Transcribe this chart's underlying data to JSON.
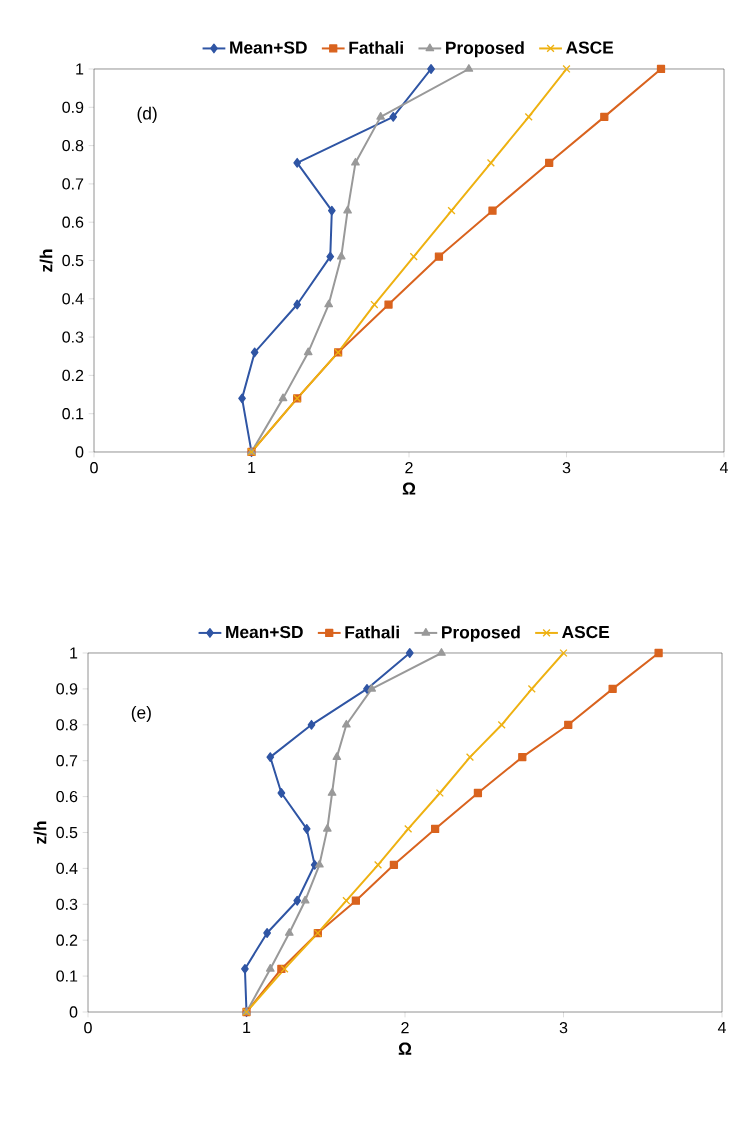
{
  "chart_data": [
    {
      "type": "line",
      "xlabel": "Ω",
      "ylabel": "z/h",
      "annotations": [
        "(d)"
      ],
      "legend": "top",
      "xlim": [
        0,
        4
      ],
      "ylim": [
        0,
        1
      ],
      "xticks": [
        0,
        1,
        2,
        3,
        4
      ],
      "yticks": [
        0,
        0.1,
        0.2,
        0.3,
        0.4,
        0.5,
        0.6,
        0.7,
        0.8,
        0.9,
        1
      ],
      "series": [
        {
          "name": "Mean+SD",
          "color": "#2f55a4",
          "marker": "diamond",
          "x": [
            1,
            0.94,
            1.02,
            1.29,
            1.5,
            1.51,
            1.29,
            1.9,
            2.14
          ],
          "values": [
            0,
            0.14,
            0.26,
            0.385,
            0.51,
            0.63,
            0.755,
            0.875,
            1
          ]
        },
        {
          "name": "Fathali",
          "color": "#d9631e",
          "marker": "square",
          "x": [
            1,
            1.29,
            1.55,
            1.87,
            2.19,
            2.53,
            2.89,
            3.24,
            3.6
          ],
          "values": [
            0,
            0.14,
            0.26,
            0.385,
            0.51,
            0.63,
            0.755,
            0.875,
            1
          ]
        },
        {
          "name": "Proposed",
          "color": "#999999",
          "marker": "triangle",
          "x": [
            1,
            1.2,
            1.36,
            1.49,
            1.57,
            1.61,
            1.66,
            1.82,
            2.38
          ],
          "values": [
            0,
            0.14,
            0.26,
            0.385,
            0.51,
            0.63,
            0.755,
            0.875,
            1
          ]
        },
        {
          "name": "ASCE",
          "color": "#eeb111",
          "marker": "cross",
          "x": [
            1,
            1.29,
            1.55,
            1.78,
            2.03,
            2.27,
            2.52,
            2.76,
            3
          ],
          "values": [
            0,
            0.14,
            0.26,
            0.385,
            0.51,
            0.63,
            0.755,
            0.875,
            1
          ]
        }
      ]
    },
    {
      "type": "line",
      "xlabel": "Ω",
      "ylabel": "z/h",
      "annotations": [
        "(e)"
      ],
      "legend": "top",
      "xlim": [
        0,
        4
      ],
      "ylim": [
        0,
        1
      ],
      "xticks": [
        0,
        1,
        2,
        3,
        4
      ],
      "yticks": [
        0,
        0.1,
        0.2,
        0.3,
        0.4,
        0.5,
        0.6,
        0.7,
        0.8,
        0.9,
        1
      ],
      "series": [
        {
          "name": "Mean+SD",
          "color": "#2f55a4",
          "marker": "diamond",
          "x": [
            1,
            0.99,
            1.13,
            1.32,
            1.43,
            1.38,
            1.22,
            1.15,
            1.41,
            1.76,
            2.03
          ],
          "values": [
            0,
            0.12,
            0.22,
            0.31,
            0.41,
            0.51,
            0.61,
            0.71,
            0.8,
            0.9,
            1
          ]
        },
        {
          "name": "Fathali",
          "color": "#d9631e",
          "marker": "square",
          "x": [
            1,
            1.22,
            1.45,
            1.69,
            1.93,
            2.19,
            2.46,
            2.74,
            3.03,
            3.31,
            3.6
          ],
          "values": [
            0,
            0.12,
            0.22,
            0.31,
            0.41,
            0.51,
            0.61,
            0.71,
            0.8,
            0.9,
            1
          ]
        },
        {
          "name": "Proposed",
          "color": "#999999",
          "marker": "triangle",
          "x": [
            1,
            1.15,
            1.27,
            1.37,
            1.46,
            1.51,
            1.54,
            1.57,
            1.63,
            1.79,
            2.23
          ],
          "values": [
            0,
            0.12,
            0.22,
            0.31,
            0.41,
            0.51,
            0.61,
            0.71,
            0.8,
            0.9,
            1
          ]
        },
        {
          "name": "ASCE",
          "color": "#eeb111",
          "marker": "cross",
          "x": [
            1,
            1.24,
            1.45,
            1.63,
            1.83,
            2.02,
            2.22,
            2.41,
            2.61,
            2.8,
            3
          ],
          "values": [
            0,
            0.12,
            0.22,
            0.31,
            0.41,
            0.51,
            0.61,
            0.71,
            0.8,
            0.9,
            1
          ]
        }
      ]
    }
  ]
}
